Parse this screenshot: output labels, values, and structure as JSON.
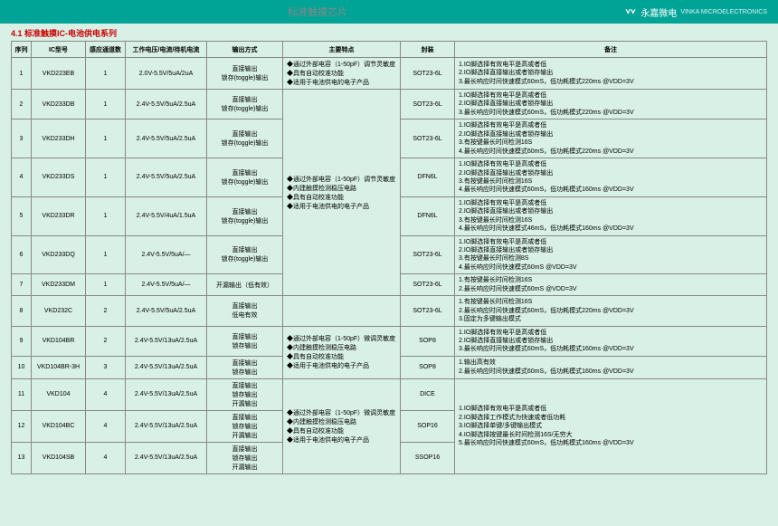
{
  "header": {
    "title": "标准触摸芯片",
    "brand": "永嘉微电",
    "brand_en": "VINKA MICROELECTRONICS"
  },
  "section": "4.1 标准触摸IC-电池供电系列",
  "columns": [
    "序列",
    "IC型号",
    "感应通道数",
    "工作电压/电流/待机电流",
    "输出方式",
    "主要特点",
    "封装",
    "备注"
  ],
  "feat1": "◆通过外部电容（1-50pF）调节灵敏度\n◆具有自动校准功能\n◆适用于电池供电的电子产品",
  "feat2": "◆通过外部电容（1-50pF）调节灵敏度\n◆内建触摸检测稳压电路\n◆具有自动校准功能\n◆适用于电池供电的电子产品",
  "feat7": "开漏输出（低有效）",
  "feat9": "◆通过外部电容（1-50pF）微调灵敏度\n◆内建触摸检测稳压电路\n◆具有自动校准功能\n◆适用于电池供电的电子产品",
  "feat11": "◆通过外部电容（1-50pF）微调灵敏度\n◆内建触摸检测稳压电路\n◆具有自动校准功能\n◆适用于电池供电的电子产品",
  "rows": [
    {
      "seq": "1",
      "model": "VKD223EB",
      "ch": "1",
      "spec": "2.0V-5.5V/5uA/2uA",
      "out": "直接输出\n锁存(toggle)输出",
      "pkg": "SOT23-6L",
      "notes": "1.IO脚选择有效电平是高或者低\n2.IO脚选择直接输出或者锁存输出\n3.最长响应时间快速模式60mS，低功耗模式220ms @VDD=3V"
    },
    {
      "seq": "2",
      "model": "VKD233DB",
      "ch": "1",
      "spec": "2.4V-5.5V/5uA/2.5uA",
      "out": "直接输出\n锁存(toggle)输出",
      "pkg": "SOT23-6L",
      "notes": "1.IO脚选择有效电平是高或者低\n2.IO脚选择直接输出或者锁存输出\n3.最长响应时间快速模式60mS，低功耗模式220ms @VDD=3V"
    },
    {
      "seq": "3",
      "model": "VKD233DH",
      "ch": "1",
      "spec": "2.4V-5.5V/5uA/2.5uA",
      "out": "直接输出\n锁存(toggle)输出",
      "pkg": "SOT23-6L",
      "notes": "1.IO脚选择有效电平是高或者低\n2.IO脚选择直接输出或者锁存输出\n3.有按键最长时间检测16S\n4.最长响应时间快速模式60mS，低功耗模式220ms @VDD=3V"
    },
    {
      "seq": "4",
      "model": "VKD233DS",
      "ch": "1",
      "spec": "2.4V-5.5V/5uA/2.5uA",
      "out": "直接输出\n锁存(toggle)输出",
      "pkg": "DFN6L",
      "notes": "1.IO脚选择有效电平是高或者低\n2.IO脚选择直接输出或者锁存输出\n3.有按键最长时间检测16S\n4.最长响应时间快速模式60mS，低功耗模式160ms @VDD=3V"
    },
    {
      "seq": "5",
      "model": "VKD233DR",
      "ch": "1",
      "spec": "2.4V-5.5V/4uA/1.5uA",
      "out": "直接输出\n锁存(toggle)输出",
      "pkg": "DFN6L",
      "notes": "1.IO脚选择有效电平是高或者低\n2.IO脚选择直接输出或者锁存输出\n3.有按键最长时间检测16S\n4.最长响应时间快速模式46mS，低功耗模式160ms @VDD=3V"
    },
    {
      "seq": "6",
      "model": "VKD233DQ",
      "ch": "1",
      "spec": "2.4V-5.5V/5uA/—",
      "out": "直接输出\n锁存(toggle)输出",
      "pkg": "SOT23-6L",
      "notes": "1.IO脚选择有效电平是高或者低\n2.IO脚选择直接输出或者锁存输出\n3.有按键最长时间检测8S\n4.最长响应时间快速模式60mS @VDD=3V"
    },
    {
      "seq": "7",
      "model": "VKD233DM",
      "ch": "1",
      "spec": "2.4V-5.5V/5uA/—",
      "out": "",
      "pkg": "SOT23-6L",
      "notes": "1.有按键最长时间检测16S\n2.最长响应时间快速模式60mS @VDD=3V"
    },
    {
      "seq": "8",
      "model": "VKD232C",
      "ch": "2",
      "spec": "2.4V-5.5V/5uA/2.5uA",
      "out": "直接输出\n低电有效",
      "pkg": "SOT23-6L",
      "notes": "1.有按键最长时间检测16S\n2.最长响应时间快速模式60mS，低功耗模式220ms @VDD=3V\n3.固定为多键输出模式"
    },
    {
      "seq": "9",
      "model": "VKD104BR",
      "ch": "2",
      "spec": "2.4V-5.5V/13uA/2.5uA",
      "out": "直接输出\n锁存输出",
      "pkg": "SOP8",
      "notes": "1.IO脚选择有效电平是高或者低\n2.IO脚选择直接输出或者锁存输出\n3.最长响应时间快速模式60mS，低功耗模式160ms @VDD=3V"
    },
    {
      "seq": "10",
      "model": "VKD104BR-3H",
      "ch": "3",
      "spec": "2.4V-5.5V/13uA/2.5uA",
      "out": "直接输出\n锁存输出",
      "pkg": "SOP8",
      "notes": "1.输出高有效\n2.最长响应时间快速模式60mS，低功耗模式160ms @VDD=3V"
    },
    {
      "seq": "11",
      "model": "VKD104",
      "ch": "4",
      "spec": "2.4V-5.5V/13uA/2.5uA",
      "out": "直接输出\n锁存输出\n开漏输出",
      "pkg": "DICE",
      "notes": ""
    },
    {
      "seq": "12",
      "model": "VKD104BC",
      "ch": "4",
      "spec": "2.4V-5.5V/13uA/2.5uA",
      "out": "直接输出\n锁存输出\n开漏输出",
      "pkg": "SOP16",
      "notes": "1.IO脚选择有效电平是高或者低\n2.IO脚选择工作模式为快速或者低功耗\n3.IO脚选择单键/多键输出模式\n4.IO脚选择按键最长时间检测16S/无穷大\n5.最长响应时间快速模式60mS，低功耗模式160ms @VDD=3V"
    },
    {
      "seq": "13",
      "model": "VKD104SB",
      "ch": "4",
      "spec": "2.4V-5.5V/13uA/2.5uA",
      "out": "直接输出\n锁存输出\n开漏输出",
      "pkg": "SSOP16",
      "notes": ""
    }
  ],
  "colors": {
    "bg": "#d8f0e6",
    "header_bg": "#00a497",
    "title_color": "#c00",
    "border": "#888"
  }
}
